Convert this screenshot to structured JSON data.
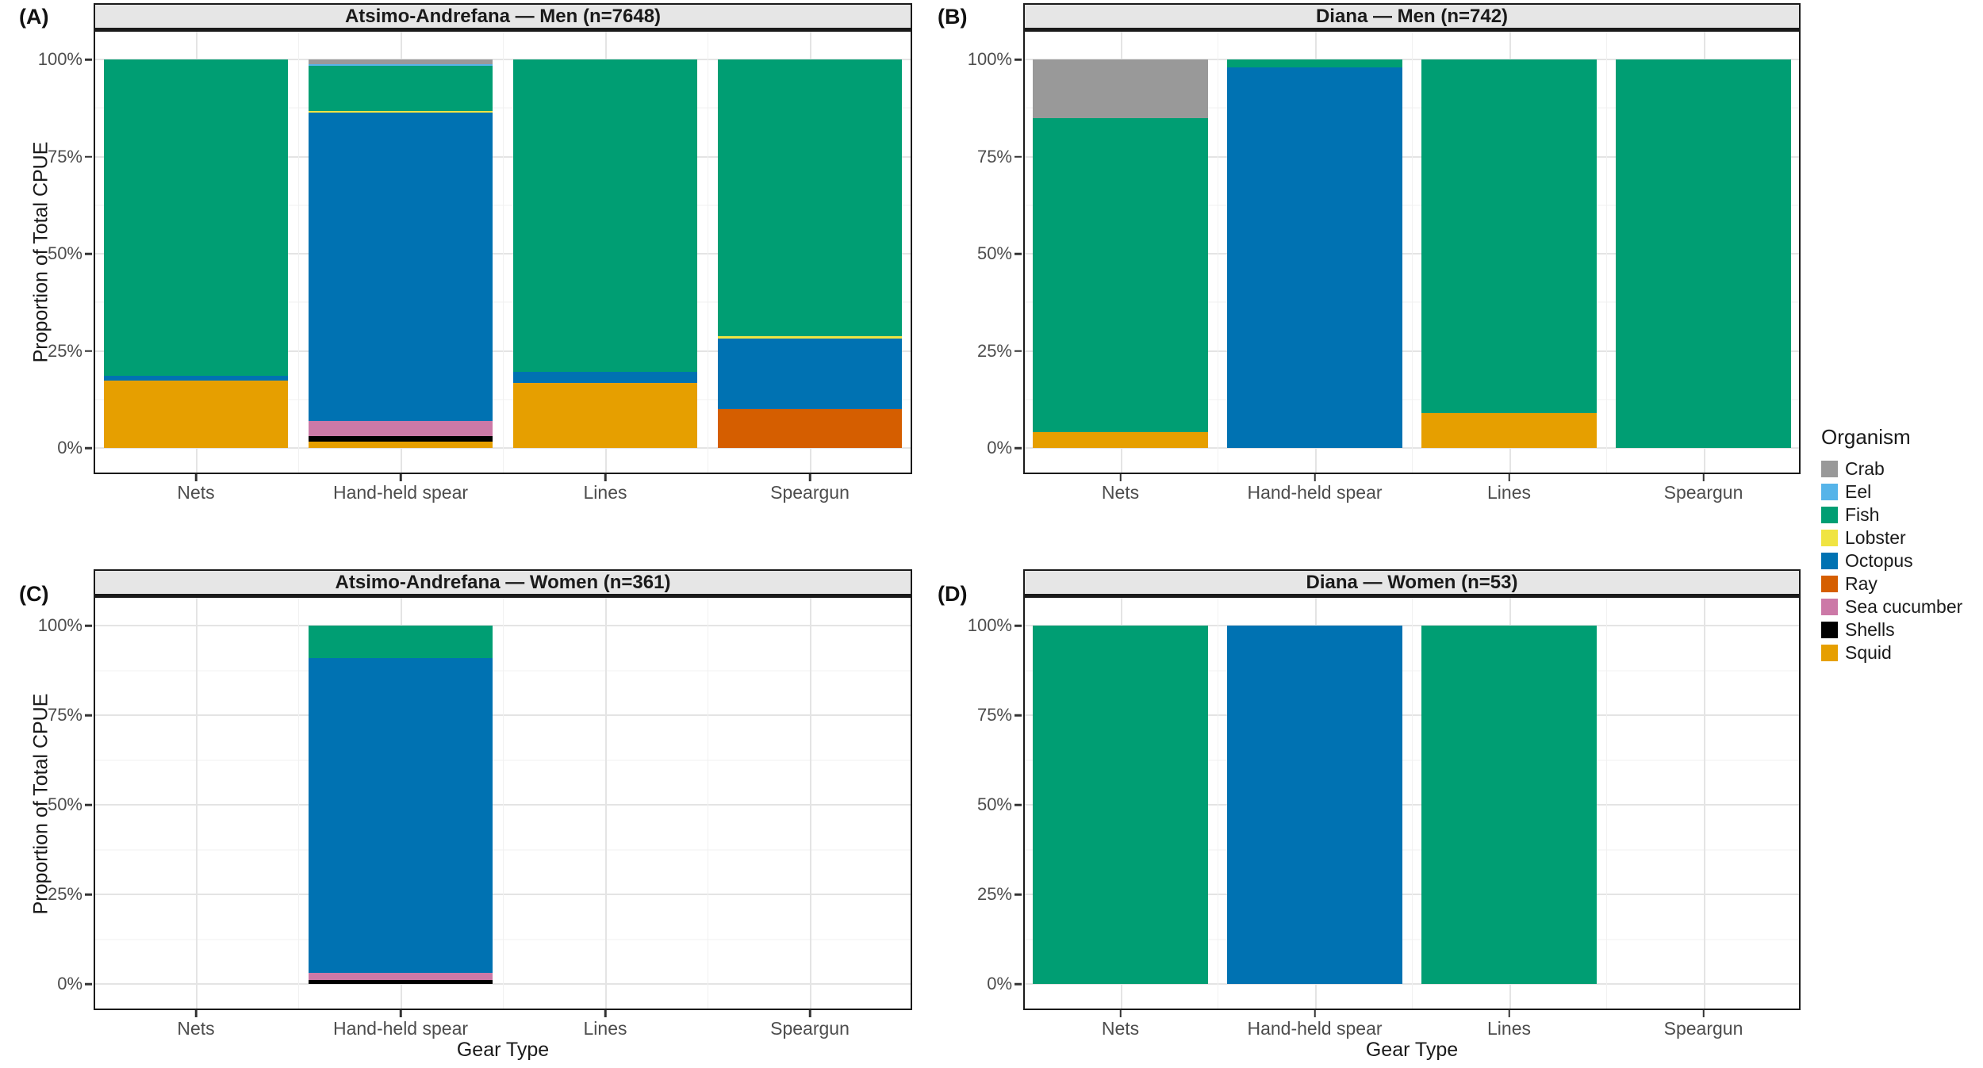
{
  "figure": {
    "ylabel": "Proportion of Total CPUE",
    "xlabel": "Gear Type"
  },
  "axes": {
    "y_ticks": [
      {
        "value": 100,
        "label": "100%"
      },
      {
        "value": 75,
        "label": "75%"
      },
      {
        "value": 50,
        "label": "50%"
      },
      {
        "value": 25,
        "label": "25%"
      },
      {
        "value": 0,
        "label": "0%"
      }
    ],
    "x_categories": [
      "Nets",
      "Hand-held spear",
      "Lines",
      "Speargun"
    ]
  },
  "colors": {
    "Crab": "#999999",
    "Eel": "#56B4E9",
    "Fish": "#009E73",
    "Lobster": "#F0E442",
    "Octopus": "#0072B2",
    "Ray": "#D55E00",
    "Sea cucumber": "#CC79A7",
    "Shells": "#000000",
    "Squid": "#E69F00"
  },
  "legend": {
    "title": "Organism",
    "entries": [
      {
        "label": "Crab"
      },
      {
        "label": "Eel"
      },
      {
        "label": "Fish"
      },
      {
        "label": "Lobster"
      },
      {
        "label": "Octopus"
      },
      {
        "label": "Ray"
      },
      {
        "label": "Sea cucumber"
      },
      {
        "label": "Shells"
      },
      {
        "label": "Squid"
      }
    ]
  },
  "chart_data": [
    {
      "panel_label": "(A)",
      "title": "Atsimo-Andrefana — Men (n=7648)",
      "type": "bar",
      "stacked": true,
      "ylim": [
        0,
        100
      ],
      "grid": true,
      "legend_position": "right",
      "categories": [
        "Nets",
        "Hand-held spear",
        "Lines",
        "Speargun"
      ],
      "series": [
        {
          "name": "Crab",
          "values": [
            0,
            1.2,
            0,
            0
          ]
        },
        {
          "name": "Eel",
          "values": [
            0,
            0.5,
            0,
            0
          ]
        },
        {
          "name": "Fish",
          "values": [
            81.4,
            11.5,
            80.5,
            71.2
          ]
        },
        {
          "name": "Lobster",
          "values": [
            0,
            0.4,
            0,
            0.6
          ]
        },
        {
          "name": "Octopus",
          "values": [
            1.2,
            79.5,
            2.7,
            18.2
          ]
        },
        {
          "name": "Ray",
          "values": [
            0,
            0,
            0,
            10.0
          ]
        },
        {
          "name": "Sea cucumber",
          "values": [
            0,
            3.9,
            0,
            0
          ]
        },
        {
          "name": "Shells",
          "values": [
            0,
            1.4,
            0,
            0
          ]
        },
        {
          "name": "Squid",
          "values": [
            17.4,
            1.6,
            16.8,
            0
          ]
        }
      ]
    },
    {
      "panel_label": "(B)",
      "title": "Diana — Men (n=742)",
      "type": "bar",
      "stacked": true,
      "ylim": [
        0,
        100
      ],
      "grid": true,
      "categories": [
        "Nets",
        "Hand-held spear",
        "Lines",
        "Speargun"
      ],
      "series": [
        {
          "name": "Crab",
          "values": [
            15,
            0,
            0,
            0
          ]
        },
        {
          "name": "Fish",
          "values": [
            81,
            2,
            91,
            100
          ]
        },
        {
          "name": "Octopus",
          "values": [
            0,
            98,
            0,
            0
          ]
        },
        {
          "name": "Squid",
          "values": [
            4,
            0,
            9,
            0
          ]
        }
      ]
    },
    {
      "panel_label": "(C)",
      "title": "Atsimo-Andrefana — Women (n=361)",
      "type": "bar",
      "stacked": true,
      "ylim": [
        0,
        100
      ],
      "grid": true,
      "categories": [
        "Nets",
        "Hand-held spear",
        "Lines",
        "Speargun"
      ],
      "series": [
        {
          "name": "Fish",
          "values": [
            0,
            9.1,
            0,
            0
          ]
        },
        {
          "name": "Octopus",
          "values": [
            0,
            87.7,
            0,
            0
          ]
        },
        {
          "name": "Sea cucumber",
          "values": [
            0,
            2.2,
            0,
            0
          ]
        },
        {
          "name": "Shells",
          "values": [
            0,
            1.0,
            0,
            0
          ]
        }
      ]
    },
    {
      "panel_label": "(D)",
      "title": "Diana — Women (n=53)",
      "type": "bar",
      "stacked": true,
      "ylim": [
        0,
        100
      ],
      "grid": true,
      "categories": [
        "Nets",
        "Hand-held spear",
        "Lines",
        "Speargun"
      ],
      "series": [
        {
          "name": "Fish",
          "values": [
            100,
            0,
            100,
            0
          ]
        },
        {
          "name": "Octopus",
          "values": [
            0,
            100,
            0,
            0
          ]
        }
      ]
    }
  ]
}
